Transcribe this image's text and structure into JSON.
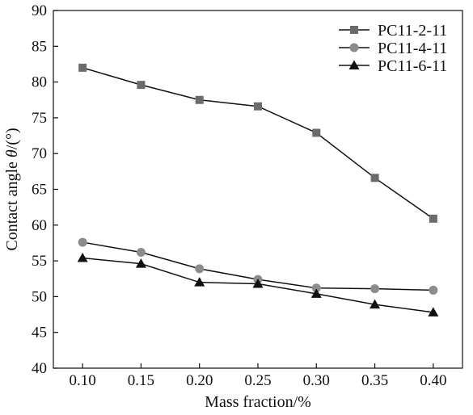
{
  "chart_data": {
    "type": "line",
    "x": [
      0.1,
      0.15,
      0.2,
      0.25,
      0.3,
      0.35,
      0.4
    ],
    "x_tick_labels": [
      "0.10",
      "0.15",
      "0.20",
      "0.25",
      "0.30",
      "0.35",
      "0.40"
    ],
    "y_ticks": [
      40,
      45,
      50,
      55,
      60,
      65,
      70,
      75,
      80,
      85,
      90
    ],
    "xlabel": "Mass fraction/%",
    "ylabel_prefix": "Contact angle ",
    "ylabel_symbol": "θ",
    "ylabel_suffix": "/(°)",
    "xlim": [
      0.075,
      0.425
    ],
    "ylim": [
      40,
      90
    ],
    "grid": false,
    "legend_position": "top-right",
    "series": [
      {
        "name": "PC11-2-11",
        "marker": "square",
        "color": "#6b6b6b",
        "values": [
          82.0,
          79.6,
          77.5,
          76.6,
          72.9,
          66.6,
          60.9
        ]
      },
      {
        "name": "PC11-4-11",
        "marker": "circle",
        "color": "#8c8c8c",
        "values": [
          57.6,
          56.2,
          53.9,
          52.4,
          51.2,
          51.1,
          50.9
        ]
      },
      {
        "name": "PC11-6-11",
        "marker": "triangle",
        "color": "#111111",
        "values": [
          55.4,
          54.6,
          52.0,
          51.8,
          50.4,
          48.9,
          47.8
        ]
      }
    ]
  }
}
